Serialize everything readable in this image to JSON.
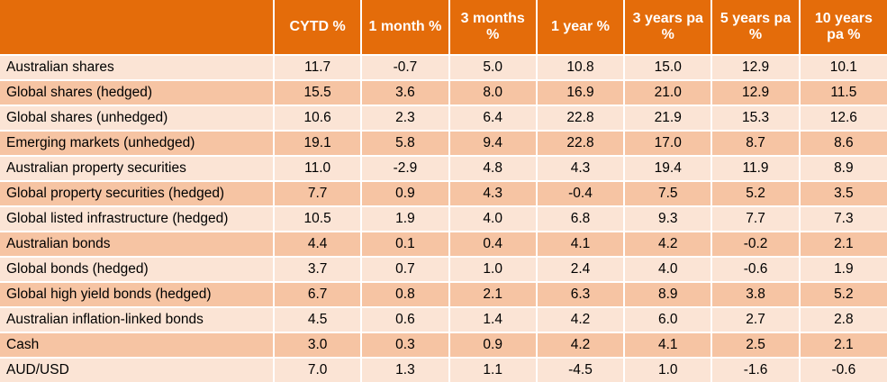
{
  "table": {
    "columns": [
      "CYTD %",
      "1 month %",
      "3 months %",
      "1 year %",
      "3 years pa %",
      "5 years pa %",
      "10 years pa %"
    ],
    "rows": [
      [
        "Australian shares",
        "11.7",
        "-0.7",
        "5.0",
        "10.8",
        "15.0",
        "12.9",
        "10.1"
      ],
      [
        "Global shares (hedged)",
        "15.5",
        "3.6",
        "8.0",
        "16.9",
        "21.0",
        "12.9",
        "11.5"
      ],
      [
        "Global shares (unhedged)",
        "10.6",
        "2.3",
        "6.4",
        "22.8",
        "21.9",
        "15.3",
        "12.6"
      ],
      [
        "Emerging markets (unhedged)",
        "19.1",
        "5.8",
        "9.4",
        "22.8",
        "17.0",
        "8.7",
        "8.6"
      ],
      [
        "Australian property securities",
        "11.0",
        "-2.9",
        "4.8",
        "4.3",
        "19.4",
        "11.9",
        "8.9"
      ],
      [
        "Global property securities (hedged)",
        "7.7",
        "0.9",
        "4.3",
        "-0.4",
        "7.5",
        "5.2",
        "3.5"
      ],
      [
        "Global listed infrastructure (hedged)",
        "10.5",
        "1.9",
        "4.0",
        "6.8",
        "9.3",
        "7.7",
        "7.3"
      ],
      [
        "Australian bonds",
        "4.4",
        "0.1",
        "0.4",
        "4.1",
        "4.2",
        "-0.2",
        "2.1"
      ],
      [
        "Global bonds (hedged)",
        "3.7",
        "0.7",
        "1.0",
        "2.4",
        "4.0",
        "-0.6",
        "1.9"
      ],
      [
        "Global high yield bonds (hedged)",
        "6.7",
        "0.8",
        "2.1",
        "6.3",
        "8.9",
        "3.8",
        "5.2"
      ],
      [
        "Australian inflation-linked bonds",
        "4.5",
        "0.6",
        "1.4",
        "4.2",
        "6.0",
        "2.7",
        "2.8"
      ],
      [
        "Cash",
        "3.0",
        "0.3",
        "0.9",
        "4.2",
        "4.1",
        "2.5",
        "2.1"
      ],
      [
        "AUD/USD",
        "7.0",
        "1.3",
        "1.1",
        "-4.5",
        "1.0",
        "-1.6",
        "-0.6"
      ]
    ]
  }
}
